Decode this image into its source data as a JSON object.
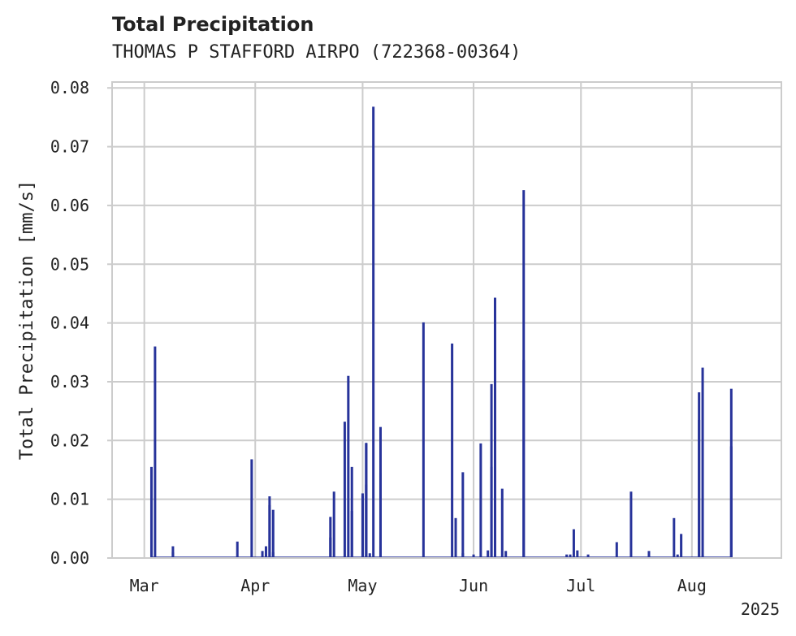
{
  "chart_data": {
    "type": "bar",
    "title": "Total Precipitation",
    "subtitle": "THOMAS P STAFFORD AIRPO (722368-00364)",
    "xlabel": "",
    "ylabel": "Total Precipitation [mm/s]",
    "ylim": [
      0,
      0.081
    ],
    "xlim": [
      "2025-02-20",
      "2025-08-26"
    ],
    "yticks": [
      "0.00",
      "0.01",
      "0.02",
      "0.03",
      "0.04",
      "0.05",
      "0.06",
      "0.07",
      "0.08"
    ],
    "xticks": [
      {
        "date": "2025-03-01",
        "label": "Mar"
      },
      {
        "date": "2025-04-01",
        "label": "Apr"
      },
      {
        "date": "2025-05-01",
        "label": "May"
      },
      {
        "date": "2025-06-01",
        "label": "Jun"
      },
      {
        "date": "2025-07-01",
        "label": "Jul"
      },
      {
        "date": "2025-08-01",
        "label": "Aug"
      }
    ],
    "year_label": "2025",
    "grid": true,
    "color": "#27339a",
    "series": [
      {
        "points": [
          [
            "2025-03-03",
            0.0155
          ],
          [
            "2025-03-04",
            0.036
          ],
          [
            "2025-03-09",
            0.002
          ],
          [
            "2025-03-09",
            0.001
          ],
          [
            "2025-03-27",
            0.0028
          ],
          [
            "2025-03-31",
            0.0168
          ],
          [
            "2025-04-03",
            0.0012
          ],
          [
            "2025-04-04",
            0.002
          ],
          [
            "2025-04-05",
            0.009
          ],
          [
            "2025-04-05",
            0.0105
          ],
          [
            "2025-04-06",
            0.0082
          ],
          [
            "2025-04-06",
            0.001
          ],
          [
            "2025-04-22",
            0.0035
          ],
          [
            "2025-04-22",
            0.007
          ],
          [
            "2025-04-23",
            0.0113
          ],
          [
            "2025-04-26",
            0.0232
          ],
          [
            "2025-04-27",
            0.031
          ],
          [
            "2025-04-28",
            0.0155
          ],
          [
            "2025-04-28",
            0.008
          ],
          [
            "2025-05-01",
            0.0105
          ],
          [
            "2025-05-01",
            0.011
          ],
          [
            "2025-05-02",
            0.0125
          ],
          [
            "2025-05-02",
            0.0196
          ],
          [
            "2025-05-03",
            0.0008
          ],
          [
            "2025-05-02",
            0.0195
          ],
          [
            "2025-05-04",
            0.0768
          ],
          [
            "2025-05-06",
            0.0145
          ],
          [
            "2025-05-06",
            0.0223
          ],
          [
            "2025-05-06",
            0.002
          ],
          [
            "2025-05-18",
            0.0401
          ],
          [
            "2025-05-26",
            0.0365
          ],
          [
            "2025-05-27",
            0.0068
          ],
          [
            "2025-05-29",
            0.0146
          ],
          [
            "2025-05-29",
            0.0008
          ],
          [
            "2025-06-01",
            0.0006
          ],
          [
            "2025-06-03",
            0.0195
          ],
          [
            "2025-06-05",
            0.0013
          ],
          [
            "2025-06-06",
            0.0296
          ],
          [
            "2025-06-06",
            0.0155
          ],
          [
            "2025-06-07",
            0.0443
          ],
          [
            "2025-06-09",
            0.0118
          ],
          [
            "2025-06-10",
            0.0012
          ],
          [
            "2025-06-15",
            0.0626
          ],
          [
            "2025-06-15",
            0.0337
          ],
          [
            "2025-06-27",
            0.0006
          ],
          [
            "2025-06-28",
            0.0006
          ],
          [
            "2025-06-29",
            0.0049
          ],
          [
            "2025-06-30",
            0.0013
          ],
          [
            "2025-07-03",
            0.0006
          ],
          [
            "2025-07-11",
            0.0027
          ],
          [
            "2025-07-15",
            0.0113
          ],
          [
            "2025-07-20",
            0.0012
          ],
          [
            "2025-07-27",
            0.0068
          ],
          [
            "2025-07-28",
            0.0006
          ],
          [
            "2025-07-29",
            0.0041
          ],
          [
            "2025-08-03",
            0.0282
          ],
          [
            "2025-08-03",
            0.0235
          ],
          [
            "2025-08-04",
            0.0324
          ],
          [
            "2025-08-04",
            0.0005
          ],
          [
            "2025-08-12",
            0.0288
          ],
          [
            "2025-08-12",
            0.019
          ]
        ]
      }
    ]
  }
}
